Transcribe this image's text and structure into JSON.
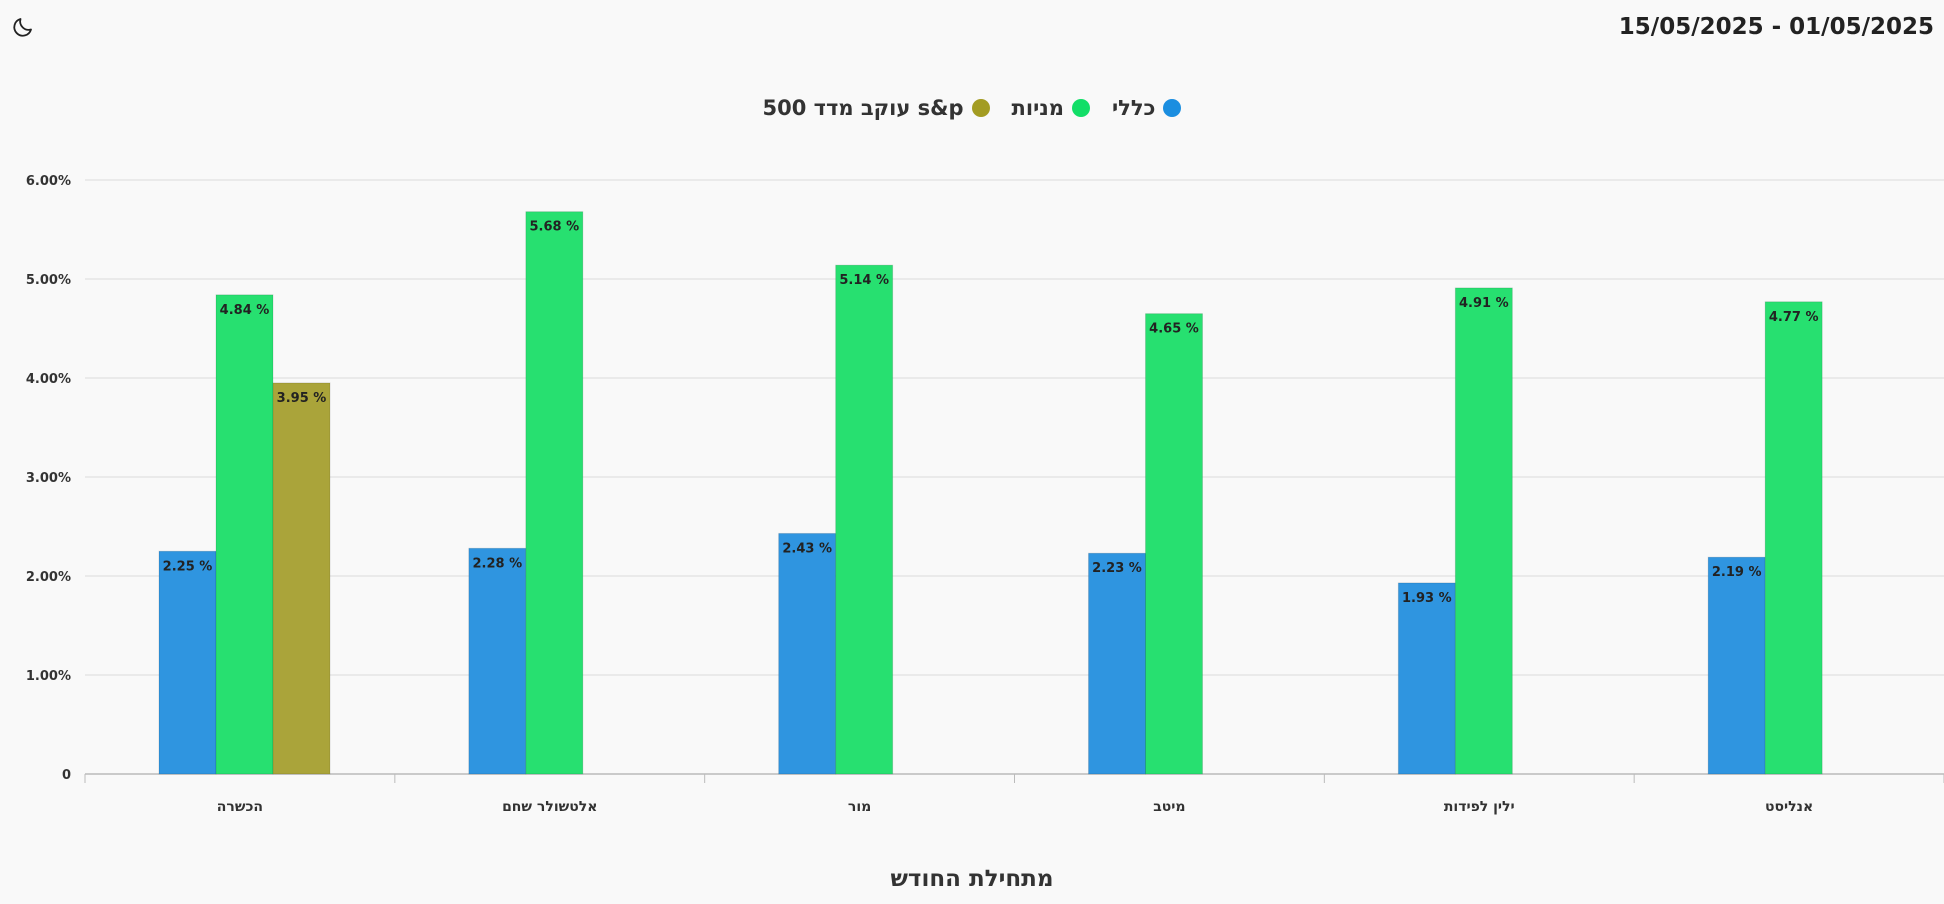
{
  "header": {
    "date_range": "15/05/2025 - 01/05/2025",
    "theme_icon": "moon-icon"
  },
  "legend": [
    {
      "label": "כללי",
      "color": "#1b8ee0"
    },
    {
      "label": "מניות",
      "color": "#12de67"
    },
    {
      "label": "s&p עוקב מדד 500",
      "color": "#a39c22"
    }
  ],
  "chart_data": {
    "type": "bar",
    "categories": [
      "הכשרה",
      "אלטשולר שחם",
      "מור",
      "מיטב",
      "ילין לפידות",
      "אנליסט"
    ],
    "series": [
      {
        "name": "כללי",
        "color": "#2f95e0",
        "values": [
          2.25,
          2.28,
          2.43,
          2.23,
          1.93,
          2.19
        ],
        "labels": [
          "2.25 %",
          "2.28 %",
          "2.43 %",
          "2.23 %",
          "1.93 %",
          "2.19 %"
        ]
      },
      {
        "name": "מניות",
        "color": "#27e070",
        "values": [
          4.84,
          5.68,
          5.14,
          4.65,
          4.91,
          4.77
        ],
        "labels": [
          "4.84 %",
          "5.68 %",
          "5.14 %",
          "4.65 %",
          "4.91 %",
          "4.77 %"
        ]
      },
      {
        "name": "s&p עוקב מדד 500",
        "color": "#aaa43a",
        "values": [
          3.95,
          null,
          null,
          null,
          null,
          null
        ],
        "labels": [
          "3.95 %",
          null,
          null,
          null,
          null,
          null
        ]
      }
    ],
    "yticks": [
      "0",
      "1.00%",
      "2.00%",
      "3.00%",
      "4.00%",
      "5.00%",
      "6.00%"
    ],
    "ylim": [
      0,
      6
    ],
    "xlabel": "מתחילת החודש",
    "grid": true,
    "legend_position": "top-center"
  }
}
